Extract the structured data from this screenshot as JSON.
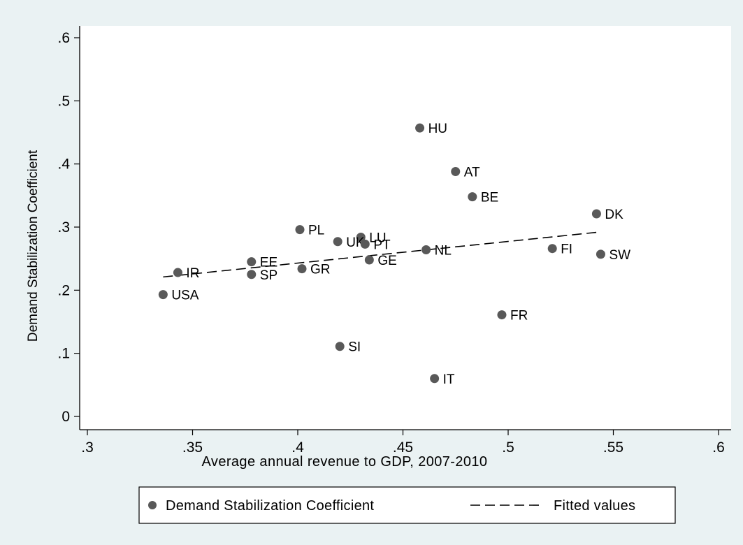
{
  "chart_data": {
    "type": "scatter",
    "title": "",
    "xlabel": "Average annual revenue to GDP, 2007-2010",
    "ylabel": "Demand Stabilization Coefficient",
    "xlim": [
      0.3,
      0.6
    ],
    "ylim": [
      0,
      0.6
    ],
    "x_ticks": [
      0.3,
      0.35,
      0.4,
      0.45,
      0.5,
      0.55,
      0.6
    ],
    "x_tick_labels": [
      ".3",
      ".35",
      ".4",
      ".45",
      ".5",
      ".55",
      ".6"
    ],
    "y_ticks": [
      0,
      0.1,
      0.2,
      0.3,
      0.4,
      0.5,
      0.6
    ],
    "y_tick_labels": [
      "0",
      ".1",
      ".2",
      ".3",
      ".4",
      ".5",
      ".6"
    ],
    "grid": false,
    "legend_position": "bottom",
    "series": [
      {
        "name": "Demand Stabilization Coefficient",
        "marker": "circle",
        "color": "#595959",
        "points": [
          {
            "label": "HU",
            "x": 0.458,
            "y": 0.457
          },
          {
            "label": "AT",
            "x": 0.475,
            "y": 0.388
          },
          {
            "label": "BE",
            "x": 0.483,
            "y": 0.348
          },
          {
            "label": "DK",
            "x": 0.542,
            "y": 0.321
          },
          {
            "label": "PL",
            "x": 0.401,
            "y": 0.296
          },
          {
            "label": "LU",
            "x": 0.43,
            "y": 0.284
          },
          {
            "label": "UK",
            "x": 0.419,
            "y": 0.277
          },
          {
            "label": "PT",
            "x": 0.432,
            "y": 0.273
          },
          {
            "label": "NL",
            "x": 0.461,
            "y": 0.264
          },
          {
            "label": "FI",
            "x": 0.521,
            "y": 0.266
          },
          {
            "label": "SW",
            "x": 0.544,
            "y": 0.257
          },
          {
            "label": "GE",
            "x": 0.434,
            "y": 0.248
          },
          {
            "label": "EE",
            "x": 0.378,
            "y": 0.245
          },
          {
            "label": "GR",
            "x": 0.402,
            "y": 0.234
          },
          {
            "label": "IR",
            "x": 0.343,
            "y": 0.228
          },
          {
            "label": "SP",
            "x": 0.378,
            "y": 0.225
          },
          {
            "label": "USA",
            "x": 0.336,
            "y": 0.193
          },
          {
            "label": "FR",
            "x": 0.497,
            "y": 0.161
          },
          {
            "label": "SI",
            "x": 0.42,
            "y": 0.111
          },
          {
            "label": "IT",
            "x": 0.465,
            "y": 0.06
          }
        ]
      },
      {
        "name": "Fitted values",
        "line_style": "dashed",
        "color": "#000000",
        "points": [
          {
            "x": 0.336,
            "y": 0.221
          },
          {
            "x": 0.543,
            "y": 0.292
          }
        ]
      }
    ]
  }
}
